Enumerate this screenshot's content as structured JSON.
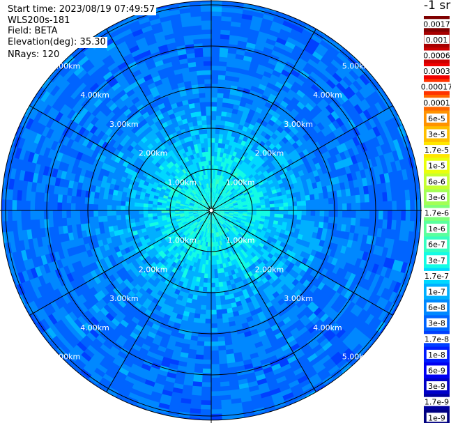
{
  "header": {
    "start_time": "Start time: 2023/08/19 07:49:57",
    "instrument": "WLS200s-181",
    "field": "Field: BETA",
    "elevation": "Elevation(deg): 35.30",
    "nrays": "NRays: 120"
  },
  "colorbar": {
    "unit_label": "-1 sr",
    "entries": [
      {
        "label": "0.0017",
        "color": "#7f0000"
      },
      {
        "label": "0.001",
        "color": "#a80000"
      },
      {
        "label": "0.0006",
        "color": "#cc0000"
      },
      {
        "label": "0.0003",
        "color": "#f00000"
      },
      {
        "label": "0.00017",
        "color": "#ff3300"
      },
      {
        "label": "0.0001",
        "color": "#ff6600"
      },
      {
        "label": "6e-5",
        "color": "#ff9300"
      },
      {
        "label": "3e-5",
        "color": "#ffbf00"
      },
      {
        "label": "1.7e-5",
        "color": "#ffe600"
      },
      {
        "label": "1e-5",
        "color": "#eaff0d"
      },
      {
        "label": "6e-6",
        "color": "#c6ff31"
      },
      {
        "label": "3e-6",
        "color": "#a2ff55"
      },
      {
        "label": "1.7e-6",
        "color": "#7eff79"
      },
      {
        "label": "1e-6",
        "color": "#5aff9d"
      },
      {
        "label": "6e-7",
        "color": "#36ffc1"
      },
      {
        "label": "3e-7",
        "color": "#13fce4"
      },
      {
        "label": "1.7e-7",
        "color": "#00d8ff"
      },
      {
        "label": "1e-7",
        "color": "#00b0ff"
      },
      {
        "label": "6e-8",
        "color": "#0088ff"
      },
      {
        "label": "3e-8",
        "color": "#0064ff"
      },
      {
        "label": "1.7e-8",
        "color": "#0040ff"
      },
      {
        "label": "1e-8",
        "color": "#001cff"
      },
      {
        "label": "6e-9",
        "color": "#0000f1"
      },
      {
        "label": "3e-9",
        "color": "#0000c8"
      },
      {
        "label": "1.7e-9",
        "color": "#00009f"
      },
      {
        "label": "1e-9",
        "color": "#000080"
      }
    ]
  },
  "chart_data": {
    "type": "heatmap",
    "projection": "polar",
    "field": "BETA",
    "scale": "log",
    "range_rings": [
      {
        "range_km": 1,
        "label": "1.00km"
      },
      {
        "range_km": 2,
        "label": "2.00km"
      },
      {
        "range_km": 3,
        "label": "3.00km"
      },
      {
        "range_km": 4,
        "label": "4.00km"
      },
      {
        "range_km": 5,
        "label": "5.00km"
      }
    ],
    "max_range_km": 5.1,
    "spokes_deg": [
      0,
      30,
      60,
      90,
      120,
      150,
      180,
      210,
      240,
      270,
      300,
      330
    ],
    "nrays": 120,
    "range_profile": [
      {
        "range_km": 0.2,
        "beta": 3e-07
      },
      {
        "range_km": 1.0,
        "beta": 2.2e-07
      },
      {
        "range_km": 1.5,
        "beta": 1.4e-07
      },
      {
        "range_km": 2.0,
        "beta": 1e-07
      },
      {
        "range_km": 2.5,
        "beta": 7e-08
      },
      {
        "range_km": 3.0,
        "beta": 5e-08
      },
      {
        "range_km": 4.0,
        "beta": 4e-08
      },
      {
        "range_km": 5.1,
        "beta": 4e-08
      }
    ]
  }
}
